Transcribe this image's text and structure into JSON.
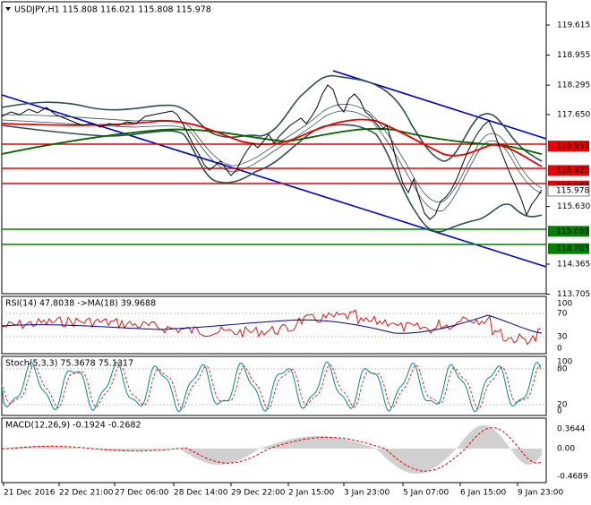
{
  "window": {
    "title": "USDJPY,H1  115.808 116.021 115.808 115.978",
    "dropdown_icon": "triangle-down-icon"
  },
  "main": {
    "price_ticks": [
      "119.615",
      "118.955",
      "118.295",
      "117.650",
      "116.958",
      "116.421",
      "116.080",
      "115.978",
      "115.630",
      "115.086",
      "114.705",
      "114.365",
      "113.705"
    ],
    "price_levels": [
      {
        "name": "red-level-1",
        "value": "116.958",
        "color": "#e60000"
      },
      {
        "name": "red-level-2",
        "value": "116.421",
        "color": "#e60000"
      },
      {
        "name": "red-level-3",
        "value": "116.080",
        "color": "#e60000"
      },
      {
        "name": "green-level-1",
        "value": "115.086",
        "color": "#008000"
      },
      {
        "name": "green-level-2",
        "value": "114.705",
        "color": "#008000"
      }
    ],
    "current_price": "115.978"
  },
  "rsi": {
    "label": "RSI(14) 47.8038  ->MA(18) 39.9688",
    "ticks": [
      "100",
      "70",
      "30",
      "0"
    ]
  },
  "stoch": {
    "label": "Stoch(5,3,3) 75.3678 75.1317",
    "ticks": [
      "100",
      "80",
      "20",
      "0"
    ]
  },
  "macd": {
    "label": "MACD(12,26,9) -0.1924 -0.2682",
    "ticks": [
      "0.3644",
      "0.00",
      "-0.4689"
    ]
  },
  "time_axis": [
    "21 Dec 2016",
    "22 Dec 21:00",
    "27 Dec 06:00",
    "28 Dec 14:00",
    "29 Dec 22:00",
    "2 Jan 15:00",
    "3 Jan 23:00",
    "5 Jan 07:00",
    "6 Jan 15:00",
    "9 Jan 23:00"
  ],
  "colors": {
    "channel": "#0000cc",
    "ma_red": "#e60000",
    "ma_green": "#006400",
    "bands": "#2f4f4f",
    "price": "#000000"
  }
}
